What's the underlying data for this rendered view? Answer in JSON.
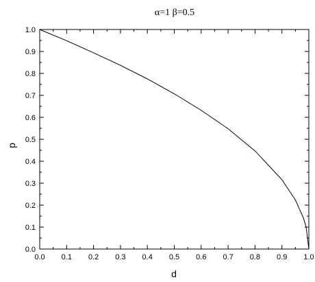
{
  "chart_data": {
    "type": "line",
    "title": "α=1 β=0.5",
    "xlabel": "d",
    "ylabel": "p",
    "xlim": [
      0.0,
      1.0
    ],
    "ylim": [
      0.0,
      1.0
    ],
    "xticks": [
      "0.0",
      "0.1",
      "0.2",
      "0.3",
      "0.4",
      "0.5",
      "0.6",
      "0.7",
      "0.8",
      "0.9",
      "1.0"
    ],
    "yticks": [
      "0.0",
      "0.1",
      "0.2",
      "0.3",
      "0.4",
      "0.5",
      "0.6",
      "0.7",
      "0.8",
      "0.9",
      "1.0"
    ],
    "grid": false,
    "line_color": "#000000",
    "series": [
      {
        "x": [
          0.0,
          0.1,
          0.2,
          0.3,
          0.4,
          0.5,
          0.6,
          0.7,
          0.8,
          0.9,
          0.95,
          0.98,
          0.99,
          1.0
        ],
        "y": [
          1.0,
          0.949,
          0.894,
          0.837,
          0.775,
          0.707,
          0.632,
          0.548,
          0.447,
          0.316,
          0.224,
          0.141,
          0.1,
          0.0
        ]
      }
    ]
  }
}
